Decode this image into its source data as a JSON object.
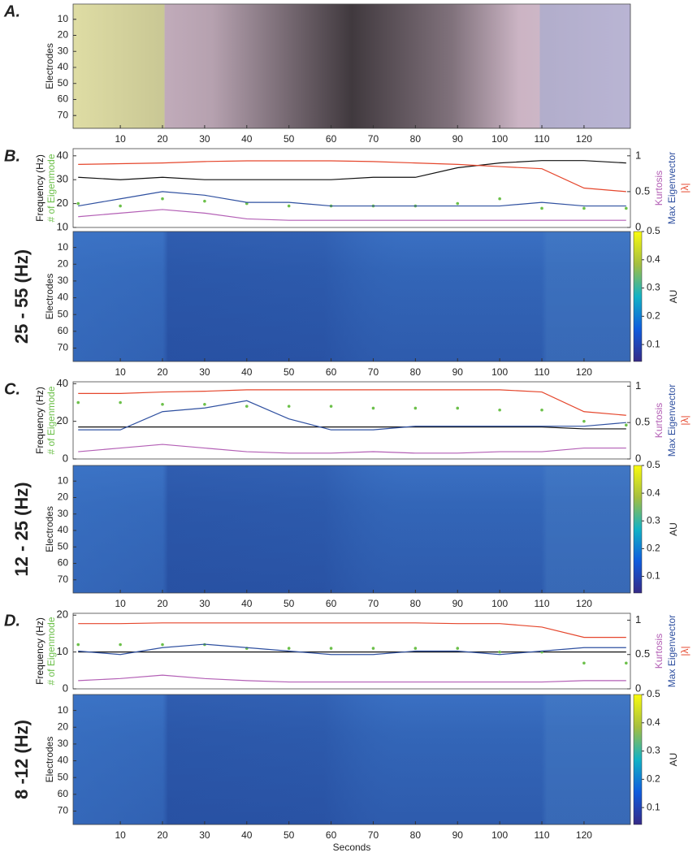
{
  "chart_data": [
    {
      "type": "raster",
      "panel_label": "A.",
      "ylabel": "Electrodes",
      "xlim": [
        -1.2,
        131
      ],
      "ylim": [
        0.5,
        78
      ],
      "xticks": [
        10,
        20,
        30,
        40,
        50,
        60,
        70,
        80,
        90,
        100,
        110,
        120
      ],
      "yticks": [
        10,
        20,
        30,
        40,
        50,
        60,
        70
      ],
      "regions": [
        {
          "start": -1.2,
          "end": 20.5,
          "color": "#f4f2b4"
        },
        {
          "start": 20.5,
          "end": 109.5,
          "color": "#ead0e2"
        },
        {
          "start": 109.5,
          "end": 131,
          "color": "#cbc6e8"
        }
      ]
    },
    {
      "type": "line",
      "panel_label": "B.",
      "xlim": [
        -1.2,
        131
      ],
      "ylim": [
        10,
        43
      ],
      "yticks": [
        10,
        20,
        30,
        40
      ],
      "y2lim": [
        0,
        1.1
      ],
      "y2ticks": [
        0,
        0.5,
        1
      ],
      "x": [
        0,
        10,
        20,
        30,
        40,
        50,
        60,
        70,
        80,
        90,
        100,
        110,
        120,
        130
      ],
      "series": [
        {
          "name": "Frequency (Hz)",
          "color": "#111111",
          "values": [
            31,
            30,
            31,
            30,
            30,
            30,
            30,
            31,
            31,
            35,
            37,
            38,
            38,
            37
          ]
        },
        {
          "name": "# of Eigenmode",
          "color": "#6cc04a",
          "values": [
            20,
            19,
            22,
            21,
            20,
            19,
            19,
            19,
            19,
            20,
            22,
            18,
            18,
            18
          ]
        },
        {
          "name": "Kurtosis",
          "color": "#b35fb5",
          "axis": "y2",
          "values": [
            0.15,
            0.2,
            0.25,
            0.2,
            0.12,
            0.1,
            0.1,
            0.1,
            0.1,
            0.1,
            0.1,
            0.1,
            0.1,
            0.1
          ]
        },
        {
          "name": "Max Eigenvector",
          "color": "#2f50a0",
          "axis": "y2",
          "values": [
            0.3,
            0.4,
            0.5,
            0.45,
            0.35,
            0.35,
            0.3,
            0.3,
            0.3,
            0.3,
            0.3,
            0.35,
            0.3,
            0.3
          ]
        },
        {
          "name": "|λ|",
          "color": "#e5462c",
          "axis": "y2",
          "values": [
            0.88,
            0.89,
            0.9,
            0.92,
            0.93,
            0.93,
            0.93,
            0.92,
            0.9,
            0.88,
            0.85,
            0.82,
            0.55,
            0.5
          ]
        }
      ]
    },
    {
      "type": "heatmap",
      "band": "25 - 55 (Hz)",
      "ylabel": "Electrodes",
      "xlim": [
        -1.2,
        131
      ],
      "ylim": [
        0.5,
        78
      ],
      "xticks": [
        10,
        20,
        30,
        40,
        50,
        60,
        70,
        80,
        90,
        100,
        110,
        120
      ],
      "yticks": [
        10,
        20,
        30,
        40,
        50,
        60,
        70
      ],
      "colorbar_label": "AU",
      "clim": [
        0.04,
        0.5
      ],
      "cticks": [
        0.1,
        0.2,
        0.3,
        0.4,
        0.5
      ]
    },
    {
      "type": "line",
      "panel_label": "C.",
      "xlim": [
        -1.2,
        131
      ],
      "ylim": [
        0,
        41
      ],
      "yticks": [
        0,
        20,
        40
      ],
      "y2lim": [
        0,
        1.06
      ],
      "y2ticks": [
        0,
        0.5,
        1
      ],
      "x": [
        0,
        10,
        20,
        30,
        40,
        50,
        60,
        70,
        80,
        90,
        100,
        110,
        120,
        130
      ],
      "series": [
        {
          "name": "Frequency (Hz)",
          "color": "#111111",
          "values": [
            17,
            17,
            17,
            17,
            17,
            17,
            17,
            17,
            17,
            17,
            17,
            17,
            16,
            16
          ]
        },
        {
          "name": "# of Eigenmode",
          "color": "#6cc04a",
          "values": [
            30,
            30,
            29,
            29,
            28,
            28,
            28,
            27,
            27,
            27,
            26,
            26,
            20,
            18
          ]
        },
        {
          "name": "Kurtosis",
          "color": "#b35fb5",
          "axis": "y2",
          "values": [
            0.1,
            0.15,
            0.2,
            0.15,
            0.1,
            0.08,
            0.08,
            0.1,
            0.08,
            0.08,
            0.1,
            0.1,
            0.15,
            0.15
          ]
        },
        {
          "name": "Max Eigenvector",
          "color": "#2f50a0",
          "axis": "y2",
          "values": [
            0.4,
            0.4,
            0.65,
            0.7,
            0.8,
            0.55,
            0.4,
            0.4,
            0.45,
            0.45,
            0.45,
            0.45,
            0.45,
            0.5
          ]
        },
        {
          "name": "|λ|",
          "color": "#e5462c",
          "axis": "y2",
          "values": [
            0.9,
            0.9,
            0.92,
            0.93,
            0.95,
            0.95,
            0.95,
            0.95,
            0.95,
            0.95,
            0.95,
            0.92,
            0.65,
            0.6
          ]
        }
      ]
    },
    {
      "type": "heatmap",
      "band": "12 - 25 (Hz)",
      "ylabel": "Electrodes",
      "xlim": [
        -1.2,
        131
      ],
      "ylim": [
        0.5,
        78
      ],
      "xticks": [
        10,
        20,
        30,
        40,
        50,
        60,
        70,
        80,
        90,
        100,
        110,
        120
      ],
      "yticks": [
        10,
        20,
        30,
        40,
        50,
        60,
        70
      ],
      "colorbar_label": "AU",
      "clim": [
        0.04,
        0.5
      ],
      "cticks": [
        0.1,
        0.2,
        0.3,
        0.4,
        0.5
      ]
    },
    {
      "type": "line",
      "panel_label": "D.",
      "xlim": [
        -1.2,
        131
      ],
      "ylim": [
        0,
        20.5
      ],
      "yticks": [
        0,
        10,
        20
      ],
      "y2lim": [
        0,
        1.1
      ],
      "y2ticks": [
        0,
        0.5,
        1
      ],
      "x": [
        0,
        10,
        20,
        30,
        40,
        50,
        60,
        70,
        80,
        90,
        100,
        110,
        120,
        130
      ],
      "series": [
        {
          "name": "Frequency (Hz)",
          "color": "#111111",
          "values": [
            10,
            10,
            10,
            10,
            10,
            10,
            10,
            10,
            10,
            10,
            10,
            10,
            10,
            10
          ]
        },
        {
          "name": "# of Eigenmode",
          "color": "#6cc04a",
          "values": [
            12,
            12,
            12,
            12,
            11,
            11,
            11,
            11,
            11,
            11,
            10,
            10,
            7,
            7
          ]
        },
        {
          "name": "Kurtosis",
          "color": "#b35fb5",
          "axis": "y2",
          "values": [
            0.12,
            0.15,
            0.2,
            0.15,
            0.12,
            0.1,
            0.1,
            0.1,
            0.1,
            0.1,
            0.1,
            0.1,
            0.12,
            0.12
          ]
        },
        {
          "name": "Max Eigenvector",
          "color": "#2f50a0",
          "axis": "y2",
          "values": [
            0.55,
            0.5,
            0.6,
            0.65,
            0.6,
            0.55,
            0.5,
            0.5,
            0.55,
            0.55,
            0.5,
            0.55,
            0.6,
            0.6
          ]
        },
        {
          "name": "|λ|",
          "color": "#e5462c",
          "axis": "y2",
          "values": [
            0.95,
            0.95,
            0.96,
            0.96,
            0.96,
            0.96,
            0.96,
            0.96,
            0.96,
            0.95,
            0.95,
            0.9,
            0.75,
            0.75
          ]
        }
      ]
    },
    {
      "type": "heatmap",
      "band": "8 -12 (Hz)",
      "ylabel": "Electrodes",
      "xlabel": "Seconds",
      "xlim": [
        -1.2,
        131
      ],
      "ylim": [
        0.5,
        78
      ],
      "xticks": [
        10,
        20,
        30,
        40,
        50,
        60,
        70,
        80,
        90,
        100,
        110,
        120
      ],
      "yticks": [
        10,
        20,
        30,
        40,
        50,
        60,
        70
      ],
      "colorbar_label": "AU",
      "clim": [
        0.04,
        0.5
      ],
      "cticks": [
        0.1,
        0.2,
        0.3,
        0.4,
        0.5
      ]
    }
  ]
}
